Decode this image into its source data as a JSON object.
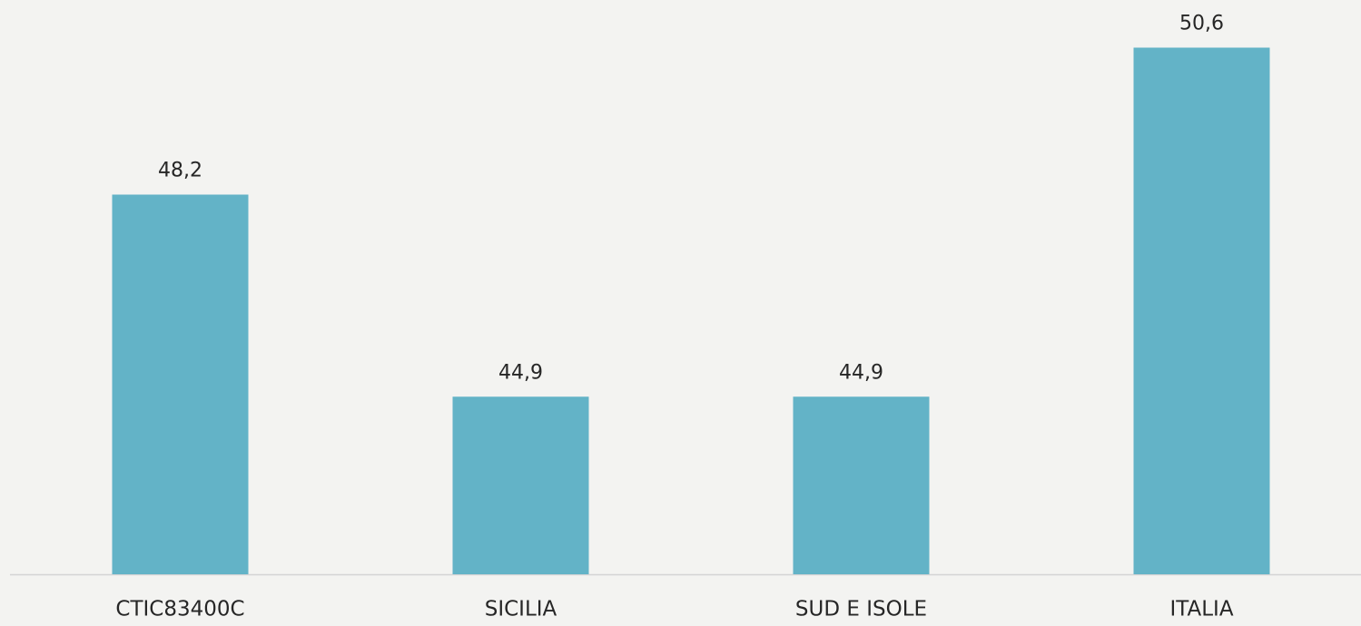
{
  "chart_data": {
    "type": "bar",
    "categories": [
      "CTIC83400C",
      "SICILIA",
      "SUD E ISOLE",
      "ITALIA"
    ],
    "values": [
      48.2,
      44.9,
      44.9,
      50.6
    ],
    "value_labels": [
      "48,2",
      "44,9",
      "44,9",
      "50,6"
    ],
    "color": "#63b3c7",
    "ylim": [
      42,
      51
    ]
  }
}
